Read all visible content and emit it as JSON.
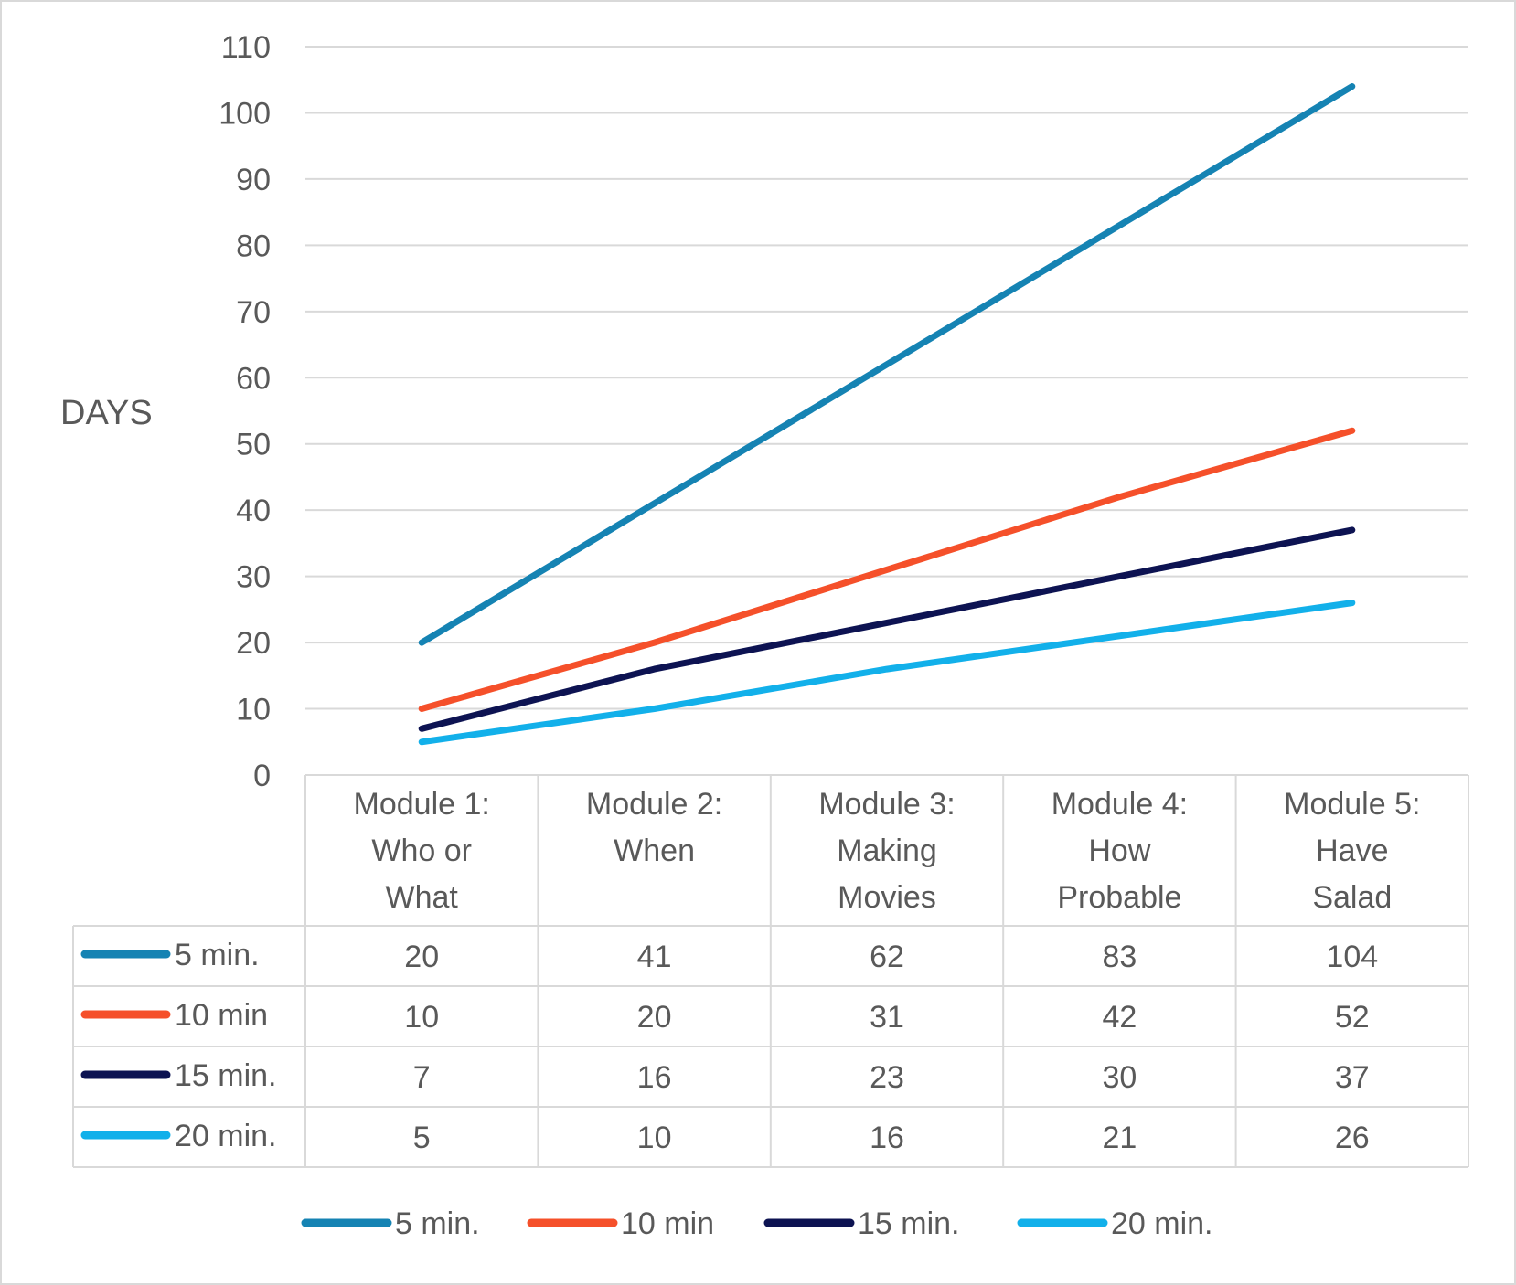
{
  "chart_data": {
    "type": "line",
    "ylabel": "DAYS",
    "ylim": [
      0,
      110
    ],
    "ytick_step": 10,
    "yticks": [
      "0",
      "10",
      "20",
      "30",
      "40",
      "50",
      "60",
      "70",
      "80",
      "90",
      "100",
      "110"
    ],
    "grid": true,
    "legend_position": "bottom",
    "categories": [
      [
        "Module 1:",
        "Who or",
        "What"
      ],
      [
        "Module 2:",
        "When"
      ],
      [
        "Module 3:",
        "Making",
        "Movies"
      ],
      [
        "Module 4:",
        "How",
        "Probable"
      ],
      [
        "Module 5:",
        "Have",
        "Salad"
      ]
    ],
    "series": [
      {
        "name": "5 min.",
        "color": "#1583b3",
        "values": [
          20,
          41,
          62,
          83,
          104
        ]
      },
      {
        "name": "10 min",
        "color": "#f5502a",
        "values": [
          10,
          20,
          31,
          42,
          52
        ]
      },
      {
        "name": "15  min.",
        "color": "#0d1352",
        "values": [
          7,
          16,
          23,
          30,
          37
        ]
      },
      {
        "name": "20 min.",
        "color": "#12b0ea",
        "values": [
          5,
          10,
          16,
          21,
          26
        ]
      }
    ],
    "data_table": true
  }
}
